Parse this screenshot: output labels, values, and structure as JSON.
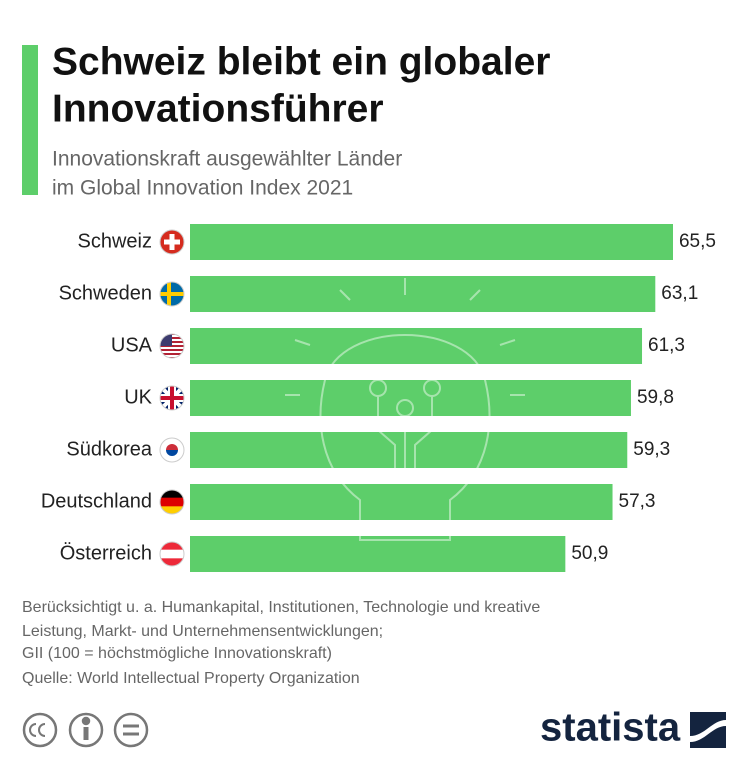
{
  "chart_data": {
    "type": "bar",
    "orientation": "horizontal",
    "title": [
      "Schweiz bleibt ein globaler",
      "Innovationsführer"
    ],
    "subtitle": [
      "Innovationskraft ausgewählter Länder",
      "im Global Innovation Index 2021"
    ],
    "categories": [
      "Schweiz",
      "Schweden",
      "USA",
      "UK",
      "Südkorea",
      "Deutschland",
      "Österreich"
    ],
    "values": [
      65.5,
      63.1,
      61.3,
      59.8,
      59.3,
      57.3,
      50.9
    ],
    "value_labels": [
      "65,5",
      "63,1",
      "61,3",
      "59,8",
      "59,3",
      "57,3",
      "50,9"
    ],
    "color": "#5dce6a",
    "notes": [
      "Berücksichtigt u. a. Humankapital, Institutionen, Technologie und kreative",
      "Leistung, Markt- und Unternehmensentwicklungen;",
      "GII (100 = höchstmögliche Innovationskraft)"
    ],
    "source": "Quelle: World Intellectual Property Organization",
    "brand": "statista"
  }
}
